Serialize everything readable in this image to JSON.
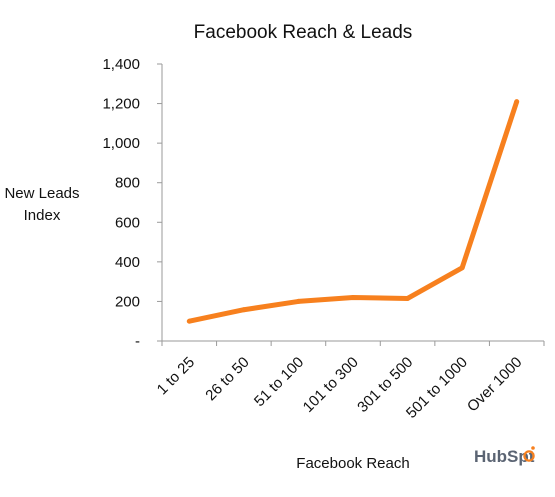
{
  "chart_data": {
    "type": "line",
    "title": "Facebook Reach & Leads",
    "xlabel": "Facebook Reach",
    "ylabel": [
      "New Leads",
      "Index"
    ],
    "categories": [
      "1 to 25",
      "26 to 50",
      "51 to 100",
      "101 to 300",
      "301 to 500",
      "501 to 1000",
      "Over 1000"
    ],
    "series": [
      {
        "values": [
          100,
          158,
          200,
          220,
          215,
          370,
          1210
        ]
      }
    ],
    "ylim": [
      0,
      1400
    ],
    "yticks": [
      0,
      200,
      400,
      600,
      800,
      1000,
      1200,
      1400
    ],
    "ytick_labels": [
      "-",
      "200",
      "400",
      "600",
      "800",
      "1,000",
      "1,200",
      "1,400"
    ],
    "line_color": "#f7801e",
    "grid": false,
    "legend": "none"
  },
  "brand": {
    "text_a": "HubSp",
    "text_b": "t",
    "accent_color": "#f7801e"
  }
}
